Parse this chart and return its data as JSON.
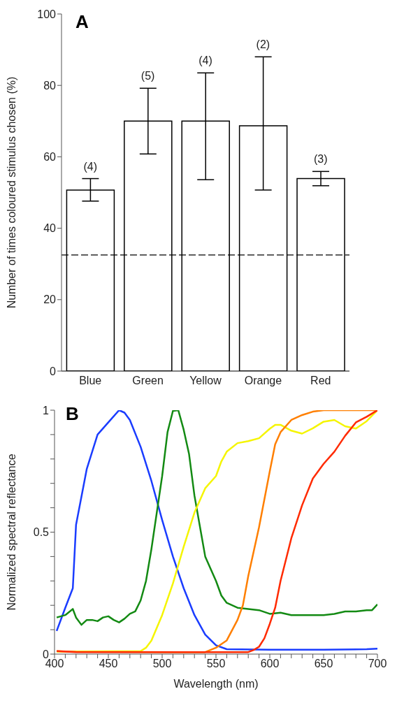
{
  "chart_data": [
    {
      "type": "bar",
      "title": "A",
      "ylabel": "Number of times coloured stimulus chosen (%)",
      "categories": [
        "Blue",
        "Green",
        "Yellow",
        "Orange",
        "Red"
      ],
      "values": [
        50.7,
        70.0,
        70.0,
        68.7,
        53.9
      ],
      "color": "#ffffff",
      "errors": [
        [
          47.6,
          53.9
        ],
        [
          60.8,
          79.2
        ],
        [
          53.6,
          83.5
        ],
        [
          50.7,
          88.0
        ],
        [
          51.9,
          55.9
        ]
      ],
      "ylim": [
        0,
        100
      ],
      "yticks": [
        0,
        20,
        40,
        60,
        80,
        100
      ],
      "ref_lines": [
        {
          "axis": "y",
          "value": 32.5,
          "color": "#000000",
          "line_style": "dashed"
        }
      ],
      "annotations": [
        {
          "text": "(4)",
          "x": "Blue",
          "y": 53.9
        },
        {
          "text": "(5)",
          "x": "Green",
          "y": 79.2
        },
        {
          "text": "(4)",
          "x": "Yellow",
          "y": 83.5
        },
        {
          "text": "(2)",
          "x": "Orange",
          "y": 88.0
        },
        {
          "text": "(3)",
          "x": "Red",
          "y": 55.9
        }
      ]
    },
    {
      "type": "line",
      "title": "B",
      "xlabel": "Wavelength (nm)",
      "ylabel": "Normalized spectral reflectance",
      "xlim": [
        400,
        700
      ],
      "ylim": [
        0,
        1
      ],
      "marker": "none",
      "line_style": "solid",
      "xticks": [
        400,
        {
          "value": 410,
          "label": null
        },
        {
          "value": 420,
          "label": null
        },
        {
          "value": 430,
          "label": null
        },
        {
          "value": 440,
          "label": null
        },
        450,
        {
          "value": 460,
          "label": null
        },
        {
          "value": 470,
          "label": null
        },
        {
          "value": 480,
          "label": null
        },
        {
          "value": 490,
          "label": null
        },
        500,
        {
          "value": 510,
          "label": null
        },
        {
          "value": 520,
          "label": null
        },
        {
          "value": 530,
          "label": null
        },
        {
          "value": 540,
          "label": null
        },
        550,
        {
          "value": 560,
          "label": null
        },
        {
          "value": 570,
          "label": null
        },
        {
          "value": 580,
          "label": null
        },
        {
          "value": 590,
          "label": null
        },
        600,
        {
          "value": 610,
          "label": null
        },
        {
          "value": 620,
          "label": null
        },
        {
          "value": 630,
          "label": null
        },
        {
          "value": 640,
          "label": null
        },
        650,
        {
          "value": 660,
          "label": null
        },
        {
          "value": 670,
          "label": null
        },
        {
          "value": 680,
          "label": null
        },
        {
          "value": 690,
          "label": null
        },
        700
      ],
      "yticks": [
        0,
        {
          "value": 0.1,
          "label": null
        },
        {
          "value": 0.2,
          "label": null
        },
        {
          "value": 0.3,
          "label": null
        },
        {
          "value": 0.4,
          "label": null
        },
        0.5,
        {
          "value": 0.6,
          "label": null
        },
        {
          "value": 0.7,
          "label": null
        },
        {
          "value": 0.8,
          "label": null
        },
        {
          "value": 0.9,
          "label": null
        },
        1
      ],
      "series": [
        {
          "color": "#1a3cff",
          "x": [
            402,
            410,
            417,
            420,
            430,
            440,
            450,
            460,
            465,
            470,
            480,
            490,
            500,
            510,
            520,
            530,
            540,
            550,
            560,
            600,
            650,
            690,
            700
          ],
          "values": [
            0.095,
            0.19,
            0.27,
            0.53,
            0.76,
            0.9,
            0.95,
            1.0,
            0.99,
            0.96,
            0.85,
            0.71,
            0.55,
            0.4,
            0.27,
            0.16,
            0.08,
            0.036,
            0.02,
            0.018,
            0.018,
            0.02,
            0.022
          ]
        },
        {
          "color": "#138a13",
          "x": [
            402,
            410,
            417,
            420,
            425,
            430,
            435,
            440,
            445,
            450,
            455,
            460,
            465,
            470,
            475,
            480,
            485,
            490,
            495,
            500,
            505,
            510,
            515,
            520,
            525,
            530,
            540,
            550,
            555,
            560,
            570,
            580,
            590,
            600,
            610,
            620,
            630,
            640,
            650,
            660,
            670,
            680,
            690,
            695,
            700
          ],
          "values": [
            0.15,
            0.16,
            0.185,
            0.15,
            0.12,
            0.14,
            0.14,
            0.135,
            0.15,
            0.155,
            0.14,
            0.13,
            0.145,
            0.165,
            0.175,
            0.22,
            0.3,
            0.43,
            0.58,
            0.73,
            0.91,
            0.997,
            1.0,
            0.92,
            0.82,
            0.65,
            0.4,
            0.3,
            0.24,
            0.21,
            0.19,
            0.185,
            0.18,
            0.165,
            0.17,
            0.16,
            0.16,
            0.16,
            0.16,
            0.165,
            0.175,
            0.175,
            0.18,
            0.18,
            0.204
          ]
        },
        {
          "color": "#f5f500",
          "x": [
            402,
            480,
            485,
            490,
            500,
            510,
            520,
            530,
            540,
            550,
            555,
            560,
            570,
            580,
            590,
            600,
            605,
            610,
            620,
            630,
            640,
            650,
            660,
            670,
            680,
            690,
            700
          ],
          "values": [
            0.01,
            0.012,
            0.026,
            0.055,
            0.16,
            0.29,
            0.44,
            0.58,
            0.68,
            0.73,
            0.79,
            0.83,
            0.865,
            0.873,
            0.885,
            0.924,
            0.94,
            0.94,
            0.916,
            0.904,
            0.926,
            0.953,
            0.96,
            0.934,
            0.925,
            0.955,
            1.0
          ]
        },
        {
          "color": "#ff7f00",
          "x": [
            402,
            420,
            540,
            550,
            560,
            570,
            575,
            580,
            590,
            600,
            605,
            610,
            620,
            630,
            640,
            650,
            700
          ],
          "values": [
            0.012,
            0.009,
            0.008,
            0.026,
            0.056,
            0.14,
            0.2,
            0.32,
            0.52,
            0.75,
            0.86,
            0.91,
            0.96,
            0.98,
            0.994,
            1.0,
            1.0
          ]
        },
        {
          "color": "#ff2a00",
          "x": [
            402,
            420,
            580,
            585,
            590,
            595,
            600,
            605,
            610,
            620,
            630,
            640,
            650,
            660,
            670,
            680,
            690,
            700
          ],
          "values": [
            0.012,
            0.008,
            0.008,
            0.017,
            0.03,
            0.065,
            0.124,
            0.19,
            0.3,
            0.475,
            0.61,
            0.72,
            0.78,
            0.83,
            0.895,
            0.95,
            0.973,
            1.0
          ]
        }
      ]
    }
  ]
}
